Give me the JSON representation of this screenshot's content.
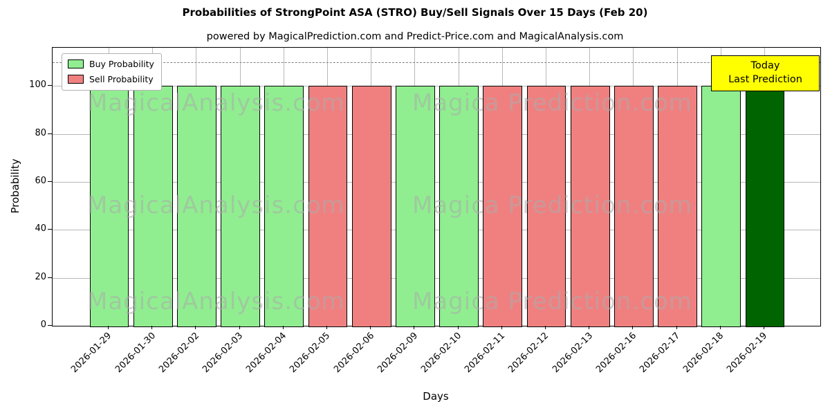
{
  "chart_data": {
    "type": "bar",
    "title": "Probabilities of StrongPoint ASA (STRO) Buy/Sell Signals Over 15 Days (Feb 20)",
    "subtitle": "powered by MagicalPrediction.com and Predict-Price.com and MagicalAnalysis.com",
    "xlabel": "Days",
    "ylabel": "Probability",
    "categories": [
      "2026-01-29",
      "2026-01-30",
      "2026-02-02",
      "2026-02-03",
      "2026-02-04",
      "2026-02-05",
      "2026-02-06",
      "2026-02-09",
      "2026-02-10",
      "2026-02-11",
      "2026-02-12",
      "2026-02-13",
      "2026-02-16",
      "2026-02-17",
      "2026-02-18",
      "2026-02-19"
    ],
    "values": [
      100,
      100,
      100,
      100,
      100,
      100,
      100,
      100,
      100,
      100,
      100,
      100,
      100,
      100,
      100,
      100
    ],
    "signals": [
      "buy",
      "buy",
      "buy",
      "buy",
      "buy",
      "sell",
      "sell",
      "buy",
      "buy",
      "sell",
      "sell",
      "sell",
      "sell",
      "sell",
      "buy",
      "today"
    ],
    "colors": {
      "buy": "#90EE90",
      "sell": "#F08080",
      "today": "#006400"
    },
    "bar_edge_color": "#000000",
    "ylim": [
      0,
      116
    ],
    "yticks": [
      0,
      20,
      40,
      60,
      80,
      100
    ],
    "dashed_line_y": 110,
    "grid": true,
    "legend_position": "upper left",
    "legend": [
      {
        "label": "Buy Probability",
        "color": "#90EE90"
      },
      {
        "label": "Sell Probability",
        "color": "#F08080"
      }
    ],
    "today_box": {
      "lines": [
        "Today",
        "Last Prediction"
      ],
      "bg_color": "#FFFF00"
    },
    "watermarks": [
      "MagicalAnalysis.com",
      "Magica Prediction.com"
    ]
  }
}
